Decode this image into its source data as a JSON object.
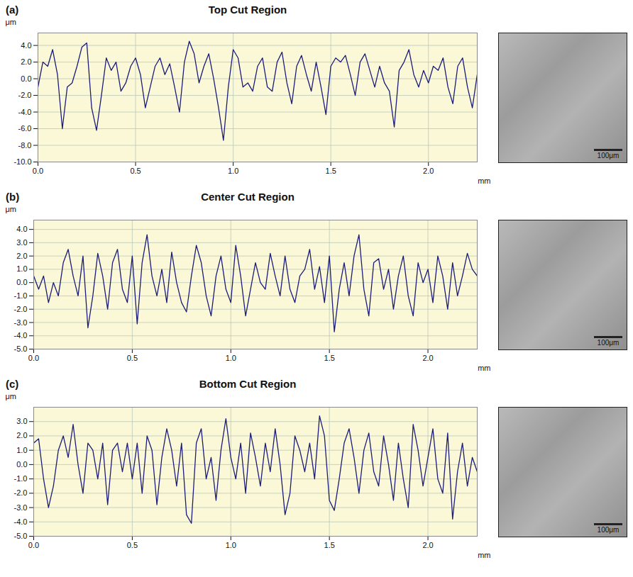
{
  "chart_data": [
    {
      "type": "line",
      "panel": "(a)",
      "title": "Top Cut Region",
      "x_label": "mm",
      "y_label": "μm",
      "scale_bar": "100μm",
      "color": "#1c1c7a",
      "grid": true,
      "xlim": [
        0,
        2.25
      ],
      "xticks": [
        {
          "value": 0,
          "label": "0.0"
        },
        0.5,
        {
          "value": 1,
          "label": "1.0"
        },
        1.5,
        {
          "value": 2,
          "label": "2.0"
        }
      ],
      "ylim": [
        -10,
        5.5
      ],
      "yticks": [
        {
          "value": -10,
          "label": "-10.0"
        },
        {
          "value": -8,
          "label": "-8.0"
        },
        {
          "value": -6,
          "label": "-6.0"
        },
        {
          "value": -4,
          "label": "-4.0"
        },
        {
          "value": -2,
          "label": "-2.0"
        },
        {
          "value": 0,
          "label": "0.0"
        },
        {
          "value": 2,
          "label": "2.0"
        },
        {
          "value": 4,
          "label": "4.0"
        }
      ],
      "x": [
        0,
        0.025,
        0.05,
        0.075,
        0.1,
        0.125,
        0.15,
        0.175,
        0.2,
        0.225,
        0.25,
        0.275,
        0.3,
        0.325,
        0.35,
        0.375,
        0.4,
        0.425,
        0.45,
        0.475,
        0.5,
        0.525,
        0.55,
        0.575,
        0.6,
        0.625,
        0.65,
        0.675,
        0.7,
        0.725,
        0.75,
        0.775,
        0.8,
        0.825,
        0.85,
        0.875,
        0.9,
        0.925,
        0.95,
        0.975,
        1,
        1.025,
        1.05,
        1.075,
        1.1,
        1.125,
        1.15,
        1.175,
        1.2,
        1.225,
        1.25,
        1.275,
        1.3,
        1.325,
        1.35,
        1.375,
        1.4,
        1.425,
        1.45,
        1.475,
        1.5,
        1.525,
        1.55,
        1.575,
        1.6,
        1.625,
        1.65,
        1.675,
        1.7,
        1.725,
        1.75,
        1.775,
        1.8,
        1.825,
        1.85,
        1.875,
        1.9,
        1.925,
        1.95,
        1.975,
        2,
        2.025,
        2.05,
        2.075,
        2.1,
        2.125,
        2.15,
        2.175,
        2.2,
        2.225,
        2.25
      ],
      "values": [
        -1.0,
        2.0,
        1.5,
        3.5,
        0.5,
        -6.0,
        -1.0,
        -0.5,
        1.5,
        3.8,
        4.3,
        -3.5,
        -6.2,
        -2.0,
        2.5,
        1.0,
        2.0,
        -1.5,
        -0.5,
        1.5,
        2.5,
        0.5,
        -3.5,
        -1.0,
        1.5,
        2.5,
        0.5,
        1.8,
        -1.0,
        -4.0,
        2.0,
        4.5,
        3.0,
        -0.5,
        1.5,
        3.0,
        0.0,
        -3.5,
        -7.4,
        -1.0,
        3.5,
        2.5,
        -1.0,
        -0.5,
        -1.5,
        1.5,
        2.5,
        -1.0,
        -1.5,
        2.0,
        3.2,
        -0.5,
        -3.0,
        1.5,
        2.8,
        0.5,
        -1.5,
        2.0,
        -1.0,
        -4.3,
        1.5,
        2.5,
        2.0,
        2.8,
        0.5,
        -2.0,
        2.0,
        3.0,
        1.0,
        -1.0,
        1.5,
        -0.5,
        -1.5,
        -5.8,
        1.0,
        2.0,
        3.5,
        0.5,
        -1.0,
        1.0,
        -0.5,
        1.5,
        1.0,
        2.5,
        -1.0,
        -3.0,
        1.5,
        2.5,
        -1.0,
        -3.5,
        0.5
      ]
    },
    {
      "type": "line",
      "panel": "(b)",
      "title": "Center Cut Region",
      "x_label": "mm",
      "y_label": "μm",
      "scale_bar": "100μm",
      "color": "#1c1c7a",
      "grid": true,
      "xlim": [
        0,
        2.25
      ],
      "xticks": [
        {
          "value": 0,
          "label": "0.0"
        },
        0.5,
        {
          "value": 1,
          "label": "1.0"
        },
        1.5,
        {
          "value": 2,
          "label": "2.0"
        }
      ],
      "ylim": [
        -5,
        4.7
      ],
      "yticks": [
        {
          "value": -5,
          "label": "-5.0"
        },
        {
          "value": -4,
          "label": "-4.0"
        },
        {
          "value": -3,
          "label": "-3.0"
        },
        {
          "value": -2,
          "label": "-2.0"
        },
        {
          "value": -1,
          "label": "-1.0"
        },
        {
          "value": 0,
          "label": "0.0"
        },
        {
          "value": 1,
          "label": "1.0"
        },
        {
          "value": 2,
          "label": "2.0"
        },
        {
          "value": 3,
          "label": "3.0"
        },
        {
          "value": 4,
          "label": "4.0"
        }
      ],
      "x": [
        0,
        0.025,
        0.05,
        0.075,
        0.1,
        0.125,
        0.15,
        0.175,
        0.2,
        0.225,
        0.25,
        0.275,
        0.3,
        0.325,
        0.35,
        0.375,
        0.4,
        0.425,
        0.45,
        0.475,
        0.5,
        0.525,
        0.55,
        0.575,
        0.6,
        0.625,
        0.65,
        0.675,
        0.7,
        0.725,
        0.75,
        0.775,
        0.8,
        0.825,
        0.85,
        0.875,
        0.9,
        0.925,
        0.95,
        0.975,
        1,
        1.025,
        1.05,
        1.075,
        1.1,
        1.125,
        1.15,
        1.175,
        1.2,
        1.225,
        1.25,
        1.275,
        1.3,
        1.325,
        1.35,
        1.375,
        1.4,
        1.425,
        1.45,
        1.475,
        1.5,
        1.525,
        1.55,
        1.575,
        1.6,
        1.625,
        1.65,
        1.675,
        1.7,
        1.725,
        1.75,
        1.775,
        1.8,
        1.825,
        1.85,
        1.875,
        1.9,
        1.925,
        1.95,
        1.975,
        2,
        2.025,
        2.05,
        2.075,
        2.1,
        2.125,
        2.15,
        2.175,
        2.2,
        2.225,
        2.25
      ],
      "values": [
        0.5,
        -0.5,
        0.5,
        -1.5,
        0.0,
        -1.0,
        1.5,
        2.5,
        0.5,
        -1.0,
        2.0,
        -3.4,
        -1.0,
        2.2,
        0.5,
        -2.0,
        1.5,
        2.5,
        -0.5,
        -1.5,
        2.0,
        -3.1,
        1.5,
        3.6,
        0.5,
        -1.0,
        1.0,
        -1.5,
        2.3,
        0.0,
        -1.5,
        -2.2,
        0.5,
        2.8,
        1.5,
        -1.0,
        -2.5,
        0.5,
        2.0,
        -0.5,
        -1.5,
        2.8,
        0.5,
        -2.5,
        -0.5,
        1.5,
        0.0,
        -0.5,
        2.2,
        0.5,
        -1.0,
        2.0,
        -0.5,
        -1.5,
        0.5,
        1.0,
        2.5,
        -0.5,
        1.2,
        -1.5,
        2.0,
        -3.7,
        -0.5,
        1.5,
        -1.0,
        2.0,
        3.6,
        -0.5,
        -2.5,
        1.5,
        1.8,
        -0.5,
        1.0,
        -2.0,
        0.5,
        2.0,
        -1.0,
        -2.5,
        1.5,
        0.0,
        1.0,
        -1.5,
        2.0,
        0.5,
        -2.0,
        1.5,
        -1.0,
        0.5,
        2.2,
        1.0,
        0.5
      ]
    },
    {
      "type": "line",
      "panel": "(c)",
      "title": "Bottom Cut Region",
      "x_label": "mm",
      "y_label": "μm",
      "scale_bar": "100μm",
      "color": "#1c1c7a",
      "grid": true,
      "xlim": [
        0,
        2.25
      ],
      "xticks": [
        {
          "value": 0,
          "label": "0.0"
        },
        0.5,
        {
          "value": 1,
          "label": "1.0"
        },
        1.5,
        {
          "value": 2,
          "label": "2.0"
        }
      ],
      "ylim": [
        -5,
        4
      ],
      "yticks": [
        {
          "value": -5,
          "label": "-5.0"
        },
        {
          "value": -4,
          "label": "-4.0"
        },
        {
          "value": -3,
          "label": "-3.0"
        },
        {
          "value": -2,
          "label": "-2.0"
        },
        {
          "value": -1,
          "label": "-1.0"
        },
        {
          "value": 0,
          "label": "0.0"
        },
        {
          "value": 1,
          "label": "1.0"
        },
        {
          "value": 2,
          "label": "2.0"
        },
        {
          "value": 3,
          "label": "3.0"
        }
      ],
      "x": [
        0,
        0.025,
        0.05,
        0.075,
        0.1,
        0.125,
        0.15,
        0.175,
        0.2,
        0.225,
        0.25,
        0.275,
        0.3,
        0.325,
        0.35,
        0.375,
        0.4,
        0.425,
        0.45,
        0.475,
        0.5,
        0.525,
        0.55,
        0.575,
        0.6,
        0.625,
        0.65,
        0.675,
        0.7,
        0.725,
        0.75,
        0.775,
        0.8,
        0.825,
        0.85,
        0.875,
        0.9,
        0.925,
        0.95,
        0.975,
        1,
        1.025,
        1.05,
        1.075,
        1.1,
        1.125,
        1.15,
        1.175,
        1.2,
        1.225,
        1.25,
        1.275,
        1.3,
        1.325,
        1.35,
        1.375,
        1.4,
        1.425,
        1.45,
        1.475,
        1.5,
        1.525,
        1.55,
        1.575,
        1.6,
        1.625,
        1.65,
        1.675,
        1.7,
        1.725,
        1.75,
        1.775,
        1.8,
        1.825,
        1.85,
        1.875,
        1.9,
        1.925,
        1.95,
        1.975,
        2,
        2.025,
        2.05,
        2.075,
        2.1,
        2.125,
        2.15,
        2.175,
        2.2,
        2.225,
        2.25
      ],
      "values": [
        1.5,
        1.8,
        -1.0,
        -3.0,
        -1.5,
        1.0,
        2.0,
        0.5,
        2.8,
        0.0,
        -2.0,
        1.5,
        1.0,
        -1.0,
        1.5,
        -2.8,
        1.0,
        1.5,
        -0.5,
        1.5,
        -1.0,
        1.5,
        -2.0,
        2.0,
        1.0,
        -2.8,
        0.5,
        2.5,
        1.0,
        -1.5,
        1.5,
        -3.5,
        -4.1,
        1.5,
        2.5,
        -1.0,
        0.5,
        -2.5,
        1.0,
        3.2,
        0.5,
        -1.0,
        1.5,
        -2.0,
        2.2,
        0.5,
        -1.5,
        1.5,
        -0.5,
        2.5,
        0.0,
        -3.5,
        -2.0,
        2.0,
        1.0,
        -0.5,
        1.5,
        -1.0,
        3.4,
        2.0,
        -2.5,
        -3.2,
        -1.0,
        1.5,
        2.5,
        0.5,
        -2.0,
        1.0,
        2.2,
        -0.5,
        -1.5,
        2.0,
        0.0,
        -2.5,
        1.5,
        -1.0,
        -3.0,
        2.8,
        1.0,
        -1.5,
        0.5,
        2.5,
        -1.0,
        -2.0,
        2.2,
        -3.8,
        -0.5,
        1.5,
        -1.5,
        0.5,
        -0.5
      ]
    }
  ]
}
